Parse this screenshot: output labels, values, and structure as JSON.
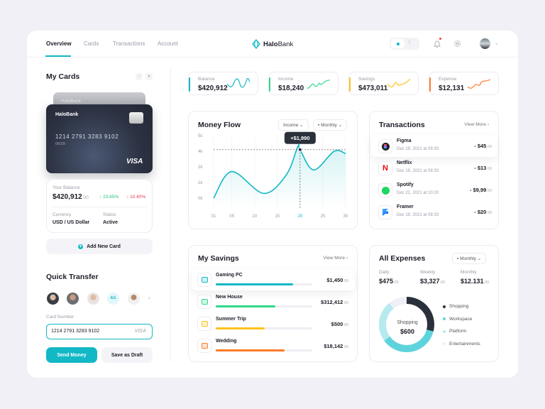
{
  "header": {
    "tabs": [
      {
        "label": "Overview",
        "active": true
      },
      {
        "label": "Cards"
      },
      {
        "label": "Transactions"
      },
      {
        "label": "Account"
      }
    ],
    "logo": {
      "bold": "Halo",
      "rest": "Bank"
    },
    "accent": "#12b8c6"
  },
  "my_cards": {
    "title": "My Cards",
    "back_card_brand": "HaloBank",
    "card": {
      "brand": "HaloBank",
      "number": "1214 2791 3283 9102",
      "expiry": "06/28",
      "network": "VISA"
    },
    "balance_label": "Your Balance",
    "balance": "$420,912",
    "balance_cents": ".00",
    "change_up": "23.65%",
    "change_down": "10.40%",
    "currency_label": "Currency",
    "currency": "USD / US Dollar",
    "status_label": "Status",
    "status": "Active",
    "add_card": "Add New Card"
  },
  "quick_transfer": {
    "title": "Quick Transfer",
    "initials": "AG",
    "card_number_label": "Card Number",
    "card_number_value": "1214 2791 3283 9102",
    "card_network": "VISA",
    "send": "Send Money",
    "draft": "Save as Draft"
  },
  "stats": [
    {
      "label": "Balance",
      "value": "$420,912",
      "color": "#12b8c6"
    },
    {
      "label": "Income",
      "value": "$18,240",
      "color": "#2fd98a"
    },
    {
      "label": "Savings",
      "value": "$473,011",
      "color": "#ffc21a"
    },
    {
      "label": "Expense",
      "value": "$12,131",
      "color": "#ff7a2a"
    }
  ],
  "money_flow": {
    "title": "Money Flow",
    "filter": "Income",
    "period": "Monthly",
    "tooltip": "+$1,990"
  },
  "chart_data": {
    "type": "area",
    "x_ticks": [
      "01",
      "05",
      "10",
      "15",
      "20",
      "25",
      "30"
    ],
    "y_ticks": [
      "0k",
      "1k",
      "2k",
      "4k",
      "5k"
    ],
    "highlight_x": "20",
    "points": [
      [
        1,
        0
      ],
      [
        5,
        1.7
      ],
      [
        12,
        0.3
      ],
      [
        17,
        1.5
      ],
      [
        19.5,
        4.3
      ],
      [
        20,
        4.1
      ],
      [
        23,
        1.8
      ],
      [
        27.5,
        4
      ],
      [
        30,
        3.7
      ]
    ],
    "grid": true,
    "color": "#12b8c6"
  },
  "transactions": {
    "title": "Transactions",
    "view_more": "View More",
    "items": [
      {
        "name": "Figma",
        "date": "Dec 19, 2021 at 09:33",
        "amount": "- $45",
        "cents": ".00",
        "icon": "figma-icon"
      },
      {
        "name": "Netflix",
        "date": "Dec 19, 2021 at 09:33",
        "amount": "- $13",
        "cents": ".00",
        "icon": "netflix-icon"
      },
      {
        "name": "Spotify",
        "date": "Dec 21, 2021 at 10:20",
        "amount": "- $9,99",
        "cents": ".00",
        "icon": "spotify-icon"
      },
      {
        "name": "Framer",
        "date": "Dec 19, 2021 at 09:33",
        "amount": "- $20",
        "cents": ".00",
        "icon": "framer-icon"
      }
    ]
  },
  "savings": {
    "title": "My Savings",
    "view_more": "View More",
    "items": [
      {
        "name": "Gaming PC",
        "amount": "$1,450",
        "cents": ".00",
        "progress": 0.8,
        "color": "#12b8c6"
      },
      {
        "name": "New House",
        "amount": "$312,412",
        "cents": ".00",
        "progress": 0.62,
        "color": "#2fd98a"
      },
      {
        "name": "Summer Trip",
        "amount": "$500",
        "cents": ".00",
        "progress": 0.51,
        "color": "#ffc21a"
      },
      {
        "name": "Wedding",
        "amount": "$18,142",
        "cents": ".00",
        "progress": 0.71,
        "color": "#ff7a2a"
      }
    ]
  },
  "expenses": {
    "title": "All Expenses",
    "period": "Monthly",
    "daily_label": "Daily",
    "daily": "$475",
    "weekly_label": "Weekly",
    "weekly": "$3,327",
    "monthly_label": "Monthly",
    "monthly": "$12.131",
    "cents": ".00",
    "center_label": "Shopping",
    "center_value": "$600",
    "segments": [
      {
        "name": "Shopping",
        "share": 0.29,
        "color": "#2b313c"
      },
      {
        "name": "Workspace",
        "share": 0.36,
        "color": "#5fd3dc"
      },
      {
        "name": "Platform",
        "share": 0.24,
        "color": "#b5eaee"
      },
      {
        "name": "Entertainments",
        "share": 0.11,
        "color": "#eff0f5"
      }
    ]
  }
}
